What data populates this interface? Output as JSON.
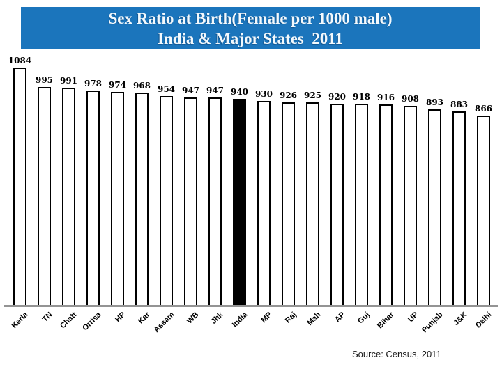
{
  "title": {
    "line1": "Sex Ratio at Birth(Female per 1000 male)",
    "line2": "India & Major States  2011"
  },
  "source": "Source: Census, 2011",
  "colors": {
    "title_bg": "#1B75BC",
    "title_text": "#F3F9FD",
    "bar_fill": "#FFFFFF",
    "bar_border": "#000000",
    "highlight_fill": "#000000",
    "axis_line": "#949494"
  },
  "chart_data": {
    "type": "bar",
    "title": "Sex Ratio at Birth(Female per 1000 male) India & Major States 2011",
    "categories": [
      "Kerla",
      "TN",
      "Chatt",
      "Orrisa",
      "HP",
      "Kar",
      "Assam",
      "WB",
      "Jhk",
      "India",
      "MP",
      "Raj",
      "Mah",
      "AP",
      "Guj",
      "Bihar",
      "UP",
      "Punjab",
      "J&K",
      "Delhi"
    ],
    "values": [
      1084,
      995,
      991,
      978,
      974,
      968,
      954,
      947,
      947,
      940,
      930,
      926,
      925,
      920,
      918,
      916,
      908,
      893,
      883,
      866
    ],
    "highlighted_category": "India",
    "xlabel": "",
    "ylabel": "",
    "ylim": [
      0,
      1390
    ],
    "data_labels": true,
    "grid": false,
    "legend": false,
    "source": "Source: Census, 2011"
  }
}
